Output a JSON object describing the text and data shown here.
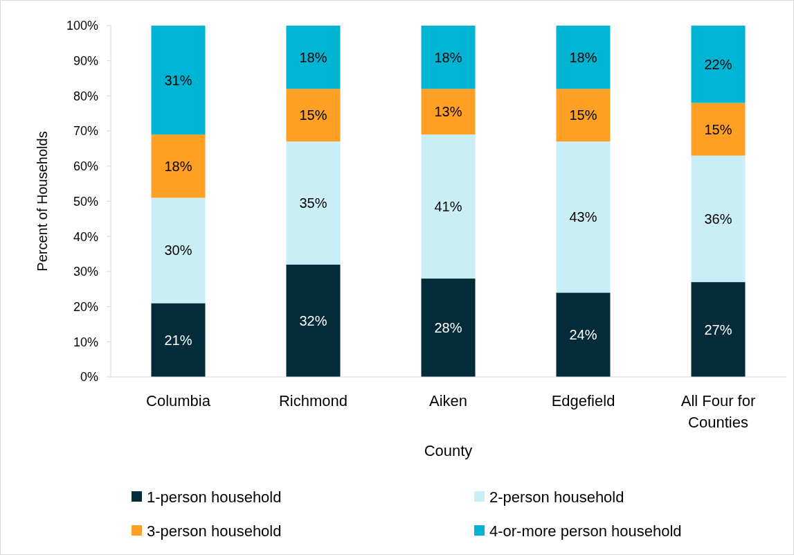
{
  "chart_data": {
    "type": "bar",
    "stacked": true,
    "xlabel": "County",
    "ylabel": "Percent of Households",
    "categories": [
      "Columbia",
      "Richmond",
      "Aiken",
      "Edgefield",
      "All Four for Counties"
    ],
    "series": [
      {
        "name": "1-person household",
        "color": "#032b3a",
        "values": [
          21,
          32,
          28,
          24,
          27
        ],
        "value_labels": [
          "21%",
          "32%",
          "28%",
          "24%",
          "27%"
        ]
      },
      {
        "name": "2-person household",
        "color": "#c9eef5",
        "values": [
          30,
          35,
          41,
          43,
          36
        ],
        "value_labels": [
          "30%",
          "35%",
          "41%",
          "43%",
          "36%"
        ]
      },
      {
        "name": "3-person household",
        "color": "#ffa024",
        "values": [
          18,
          15,
          13,
          15,
          15
        ],
        "value_labels": [
          "18%",
          "15%",
          "13%",
          "15%",
          "15%"
        ]
      },
      {
        "name": "4-or-more person household",
        "color": "#00b4d4",
        "values": [
          31,
          18,
          18,
          18,
          22
        ],
        "value_labels": [
          "31%",
          "18%",
          "18%",
          "18%",
          "22%"
        ]
      }
    ],
    "ylim": [
      0,
      100
    ],
    "yticks": [
      {
        "value": 0,
        "label": "0%"
      },
      {
        "value": 10,
        "label": "10%"
      },
      {
        "value": 20,
        "label": "20%"
      },
      {
        "value": 30,
        "label": "30%"
      },
      {
        "value": 40,
        "label": "40%"
      },
      {
        "value": 50,
        "label": "50%"
      },
      {
        "value": 60,
        "label": "60%"
      },
      {
        "value": 70,
        "label": "70%"
      },
      {
        "value": 80,
        "label": "80%"
      },
      {
        "value": 90,
        "label": "90%"
      },
      {
        "value": 100,
        "label": "100%"
      }
    ],
    "legend": "bottom",
    "grid": false
  }
}
